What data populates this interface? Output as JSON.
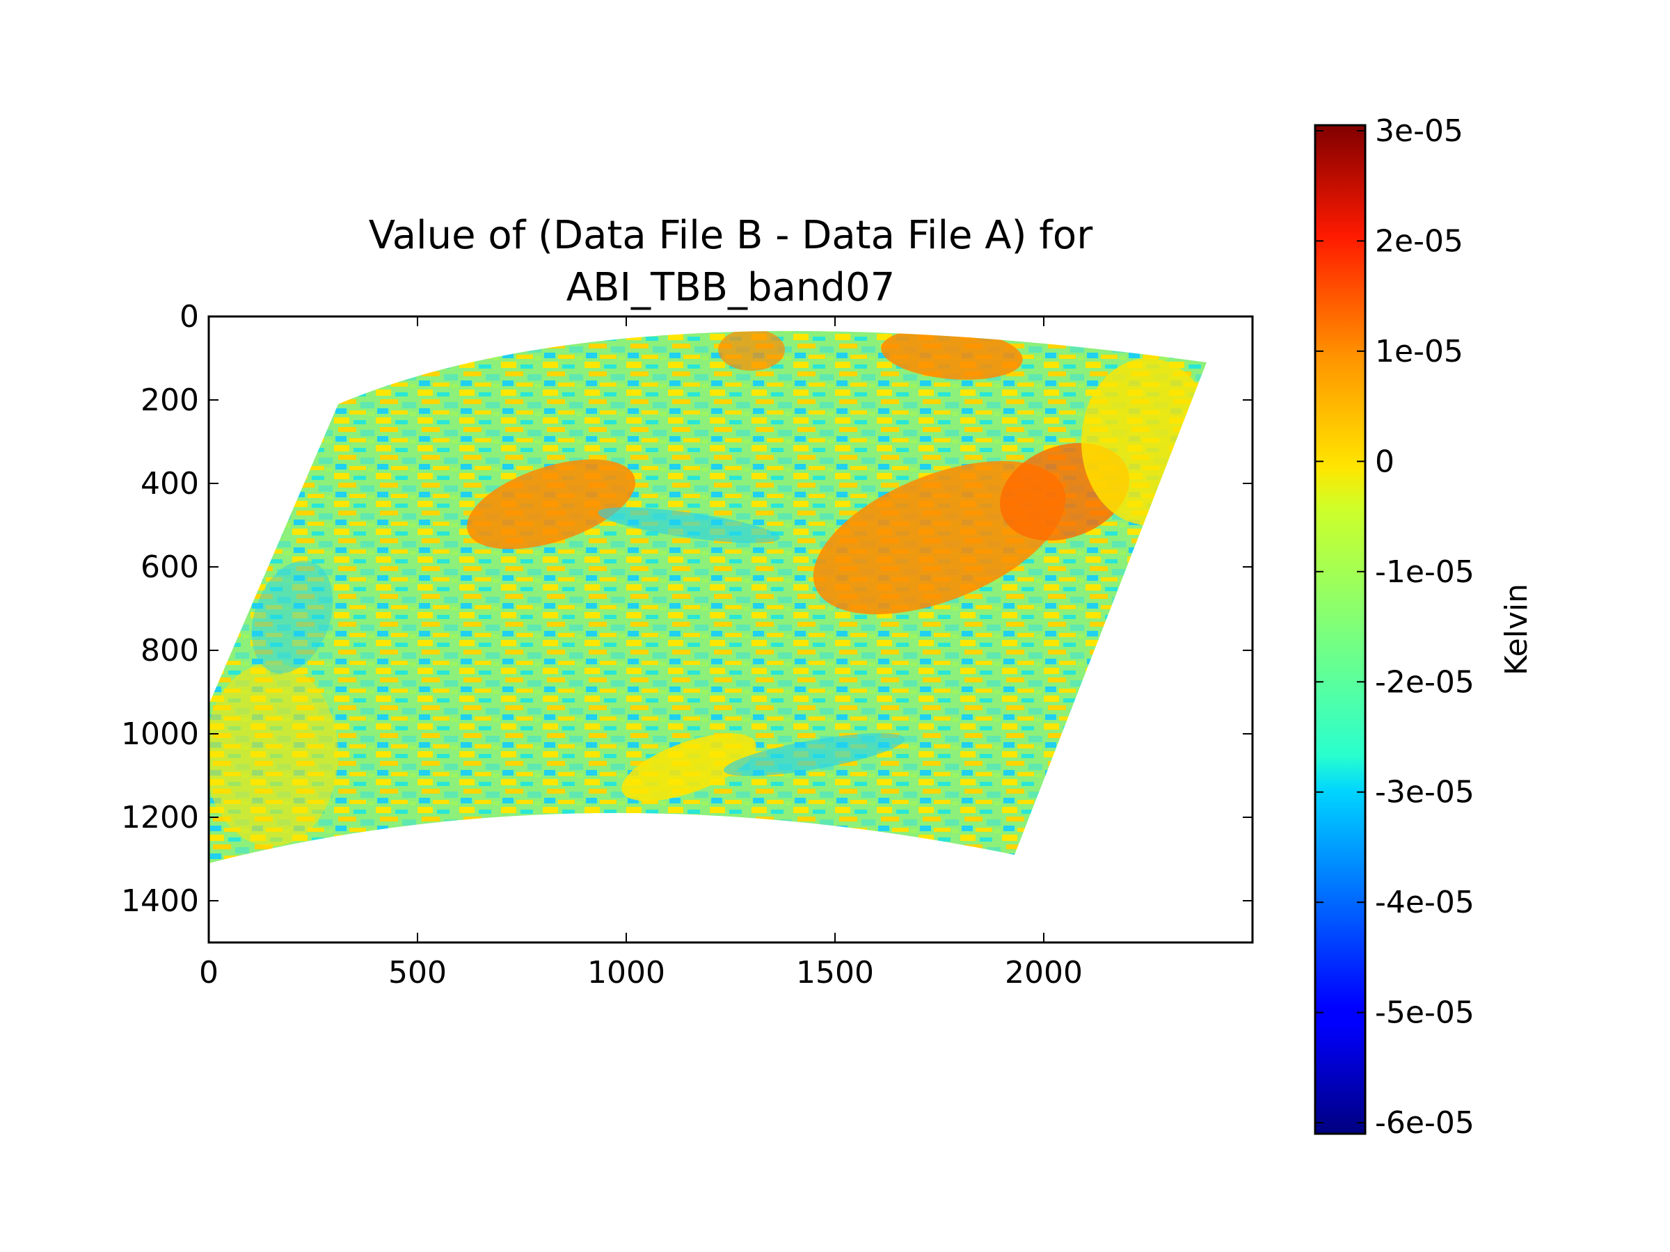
{
  "chart_data": {
    "type": "heatmap",
    "title_line1": "Value of (Data File B - Data File A) for",
    "title_line2": "ABI_TBB_band07",
    "xlabel": "",
    "ylabel": "",
    "xlim": [
      0,
      2500
    ],
    "ylim": [
      1500,
      0
    ],
    "x_ticks": [
      "0",
      "500",
      "1000",
      "1500",
      "2000"
    ],
    "x_tick_values": [
      0,
      500,
      1000,
      1500,
      2000
    ],
    "y_ticks": [
      "0",
      "200",
      "400",
      "600",
      "800",
      "1000",
      "1200",
      "1400"
    ],
    "y_tick_values": [
      0,
      200,
      400,
      600,
      800,
      1000,
      1200,
      1400
    ],
    "data_extent": {
      "top_left": [
        310,
        210
      ],
      "top_right": [
        2390,
        110
      ],
      "bottom_right": [
        1930,
        1290
      ],
      "bottom_left": [
        0,
        1310
      ],
      "left_edge_top": [
        0,
        930
      ]
    },
    "colorbar": {
      "label": "Kelvin",
      "colormap": "jet",
      "range": [
        -6.1e-05,
        3.05e-05
      ],
      "tick_labels": [
        "3e-05",
        "2e-05",
        "1e-05",
        "0",
        "-1e-05",
        "-2e-05",
        "-3e-05",
        "-4e-05",
        "-5e-05",
        "-6e-05"
      ],
      "tick_values": [
        3e-05,
        2e-05,
        1e-05,
        0,
        -1e-05,
        -2e-05,
        -3e-05,
        -4e-05,
        -5e-05,
        -6e-05
      ]
    },
    "grid": false
  }
}
